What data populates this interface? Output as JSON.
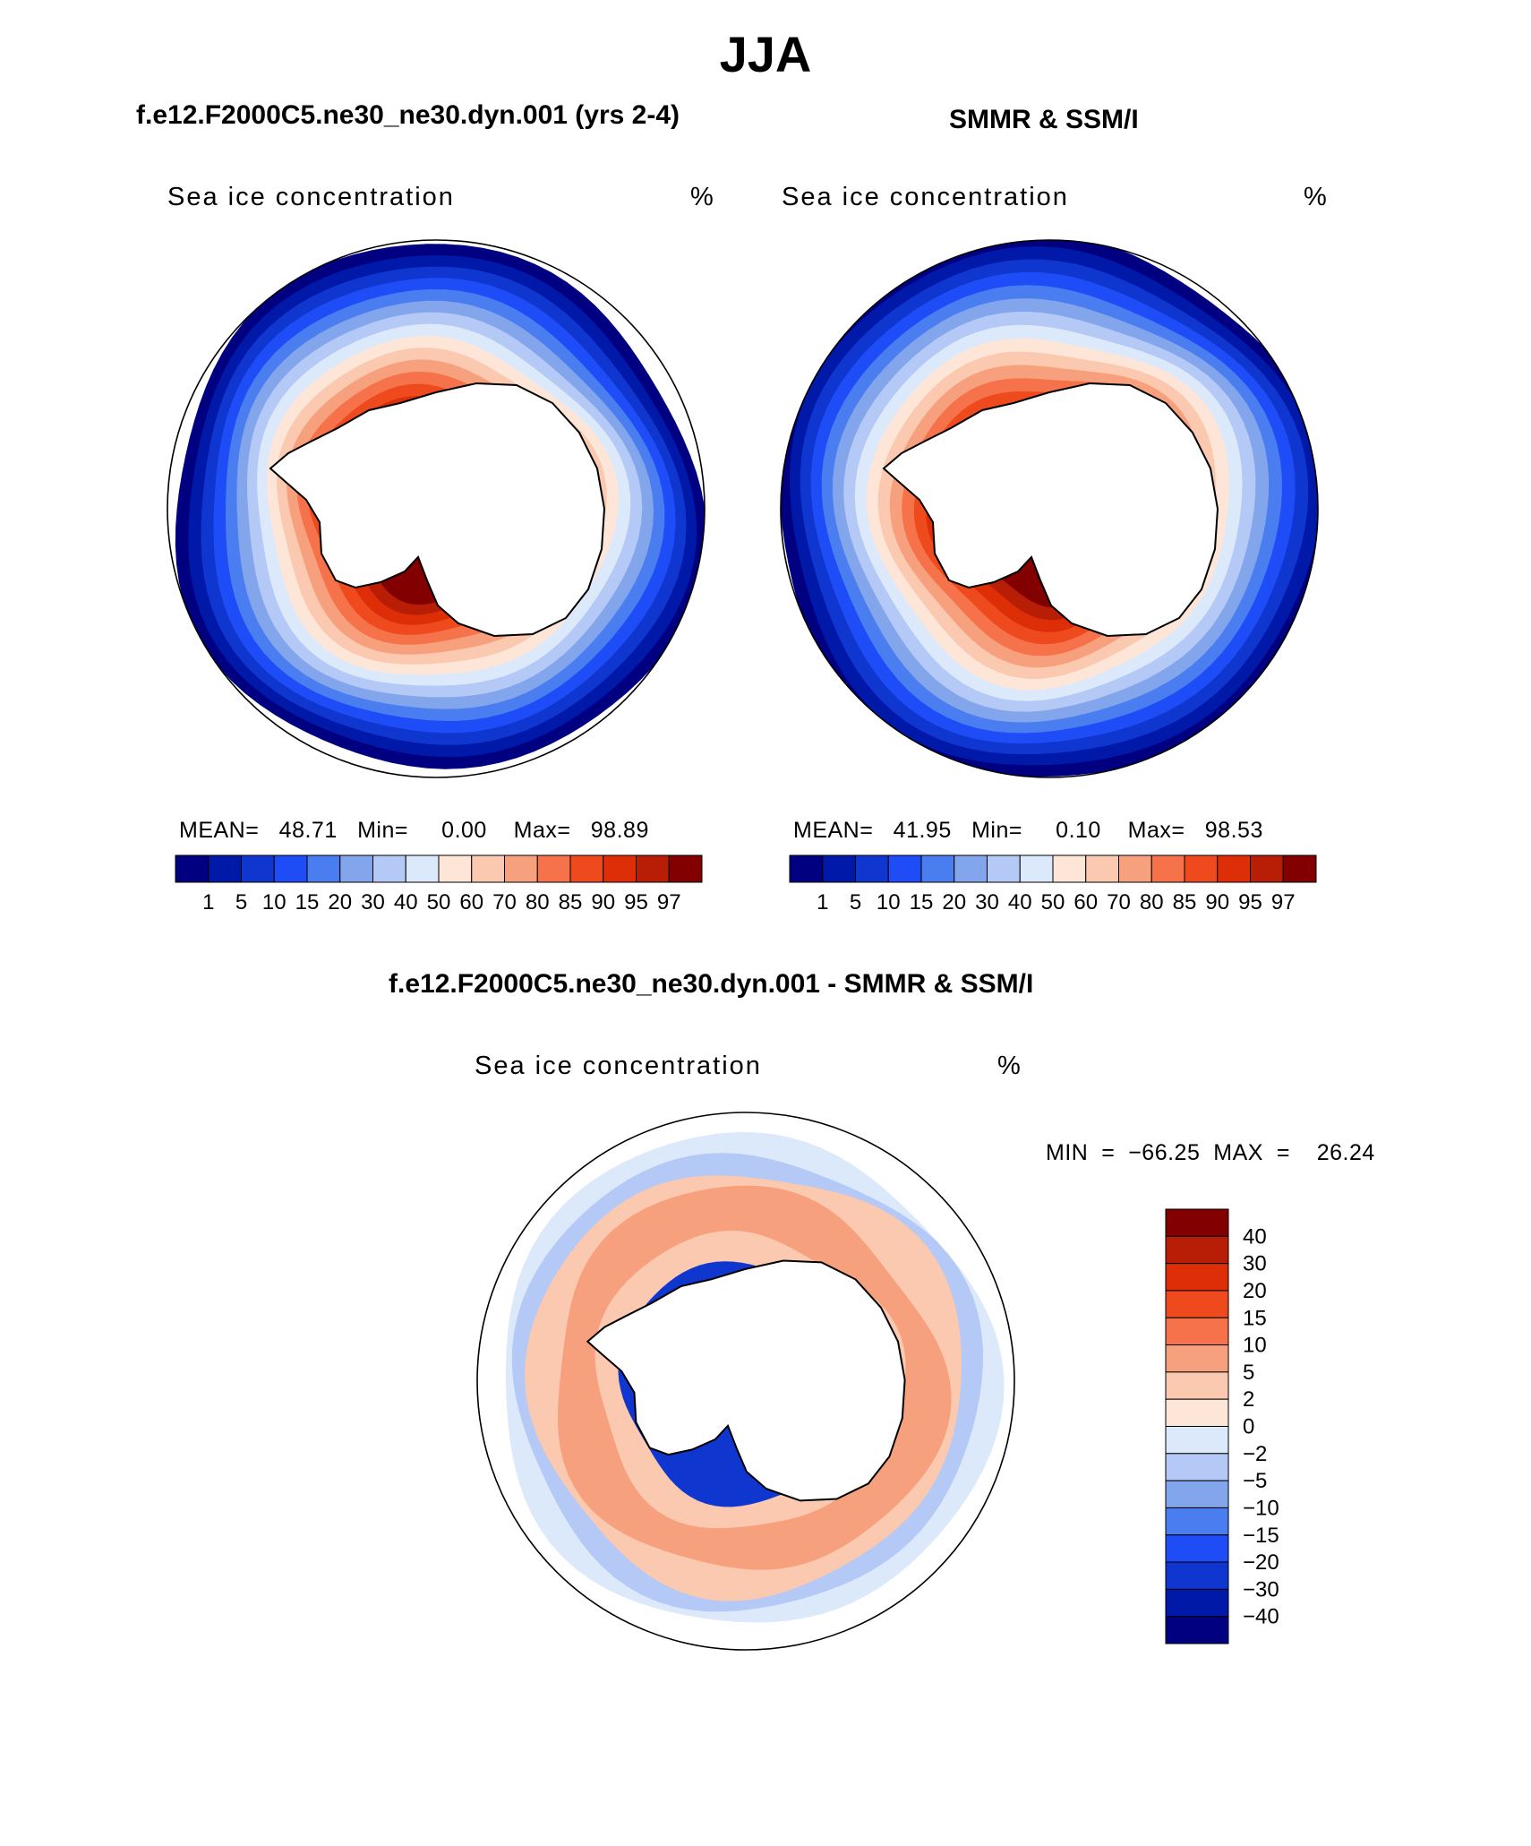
{
  "title": "JJA",
  "panels": [
    {
      "heading": "f.e12.F2000C5.ne30_ne30.dyn.001 (yrs 2-4)",
      "label": "Sea ice concentration",
      "unit": "%",
      "stats": "MEAN=   48.71   Min=     0.00    Max=   98.89"
    },
    {
      "heading": "SMMR & SSM/I",
      "label": "Sea ice concentration",
      "unit": "%",
      "stats": "MEAN=   41.95   Min=     0.10    Max=   98.53"
    }
  ],
  "difference": {
    "heading": "f.e12.F2000C5.ne30_ne30.dyn.001 - SMMR & SSM/I",
    "label": "Sea ice concentration",
    "unit": "%",
    "stats": "MIN  =  −66.25  MAX  =    26.24"
  },
  "chart_data": [
    {
      "type": "heatmap",
      "projection": "south polar stereographic",
      "title": "Sea ice concentration",
      "units": "%",
      "summary": {
        "mean": 48.71,
        "min": 0.0,
        "max": 98.89
      },
      "colorbar_levels": [
        1,
        5,
        10,
        15,
        20,
        30,
        40,
        50,
        60,
        70,
        80,
        85,
        90,
        95,
        97
      ],
      "colorbar_labels": [
        "1",
        "5",
        "10",
        "15",
        "20",
        "30",
        "40",
        "50",
        "60",
        "70",
        "80",
        "85",
        "90",
        "95",
        "97"
      ],
      "colors": [
        "#000080",
        "#0019a8",
        "#0f37d0",
        "#1e4df8",
        "#4a7ef0",
        "#82a5ec",
        "#b4c9f5",
        "#dce9fb",
        "#fde6d8",
        "#fbc8b0",
        "#f7a07d",
        "#f5724a",
        "#ee4a1e",
        "#dd2e08",
        "#b81e06",
        "#820000"
      ]
    },
    {
      "type": "heatmap",
      "projection": "south polar stereographic",
      "title": "Sea ice concentration",
      "units": "%",
      "summary": {
        "mean": 41.95,
        "min": 0.1,
        "max": 98.53
      },
      "colorbar_levels": [
        1,
        5,
        10,
        15,
        20,
        30,
        40,
        50,
        60,
        70,
        80,
        85,
        90,
        95,
        97
      ],
      "colorbar_labels": [
        "1",
        "5",
        "10",
        "15",
        "20",
        "30",
        "40",
        "50",
        "60",
        "70",
        "80",
        "85",
        "90",
        "95",
        "97"
      ],
      "colors": [
        "#000080",
        "#0019a8",
        "#0f37d0",
        "#1e4df8",
        "#4a7ef0",
        "#82a5ec",
        "#b4c9f5",
        "#dce9fb",
        "#fde6d8",
        "#fbc8b0",
        "#f7a07d",
        "#f5724a",
        "#ee4a1e",
        "#dd2e08",
        "#b81e06",
        "#820000"
      ]
    },
    {
      "type": "heatmap",
      "projection": "south polar stereographic",
      "title": "Sea ice concentration",
      "units": "%",
      "summary": {
        "min": -66.25,
        "max": 26.24
      },
      "colorbar_levels": [
        40,
        30,
        20,
        15,
        10,
        5,
        2,
        0,
        -2,
        -5,
        -10,
        -15,
        -20,
        -30,
        -40
      ],
      "colorbar_labels": [
        "40",
        "30",
        "20",
        "15",
        "10",
        "5",
        "2",
        "0",
        "−2",
        "−5",
        "−10",
        "−15",
        "−20",
        "−30",
        "−40"
      ],
      "colors": [
        "#820000",
        "#b81e06",
        "#dd2e08",
        "#ee4a1e",
        "#f5724a",
        "#f7a07d",
        "#fbc8b0",
        "#fde6d8",
        "#dce9fb",
        "#b4c9f5",
        "#82a5ec",
        "#4a7ef0",
        "#1e4df8",
        "#0f37d0",
        "#0019a8",
        "#000080"
      ]
    }
  ]
}
